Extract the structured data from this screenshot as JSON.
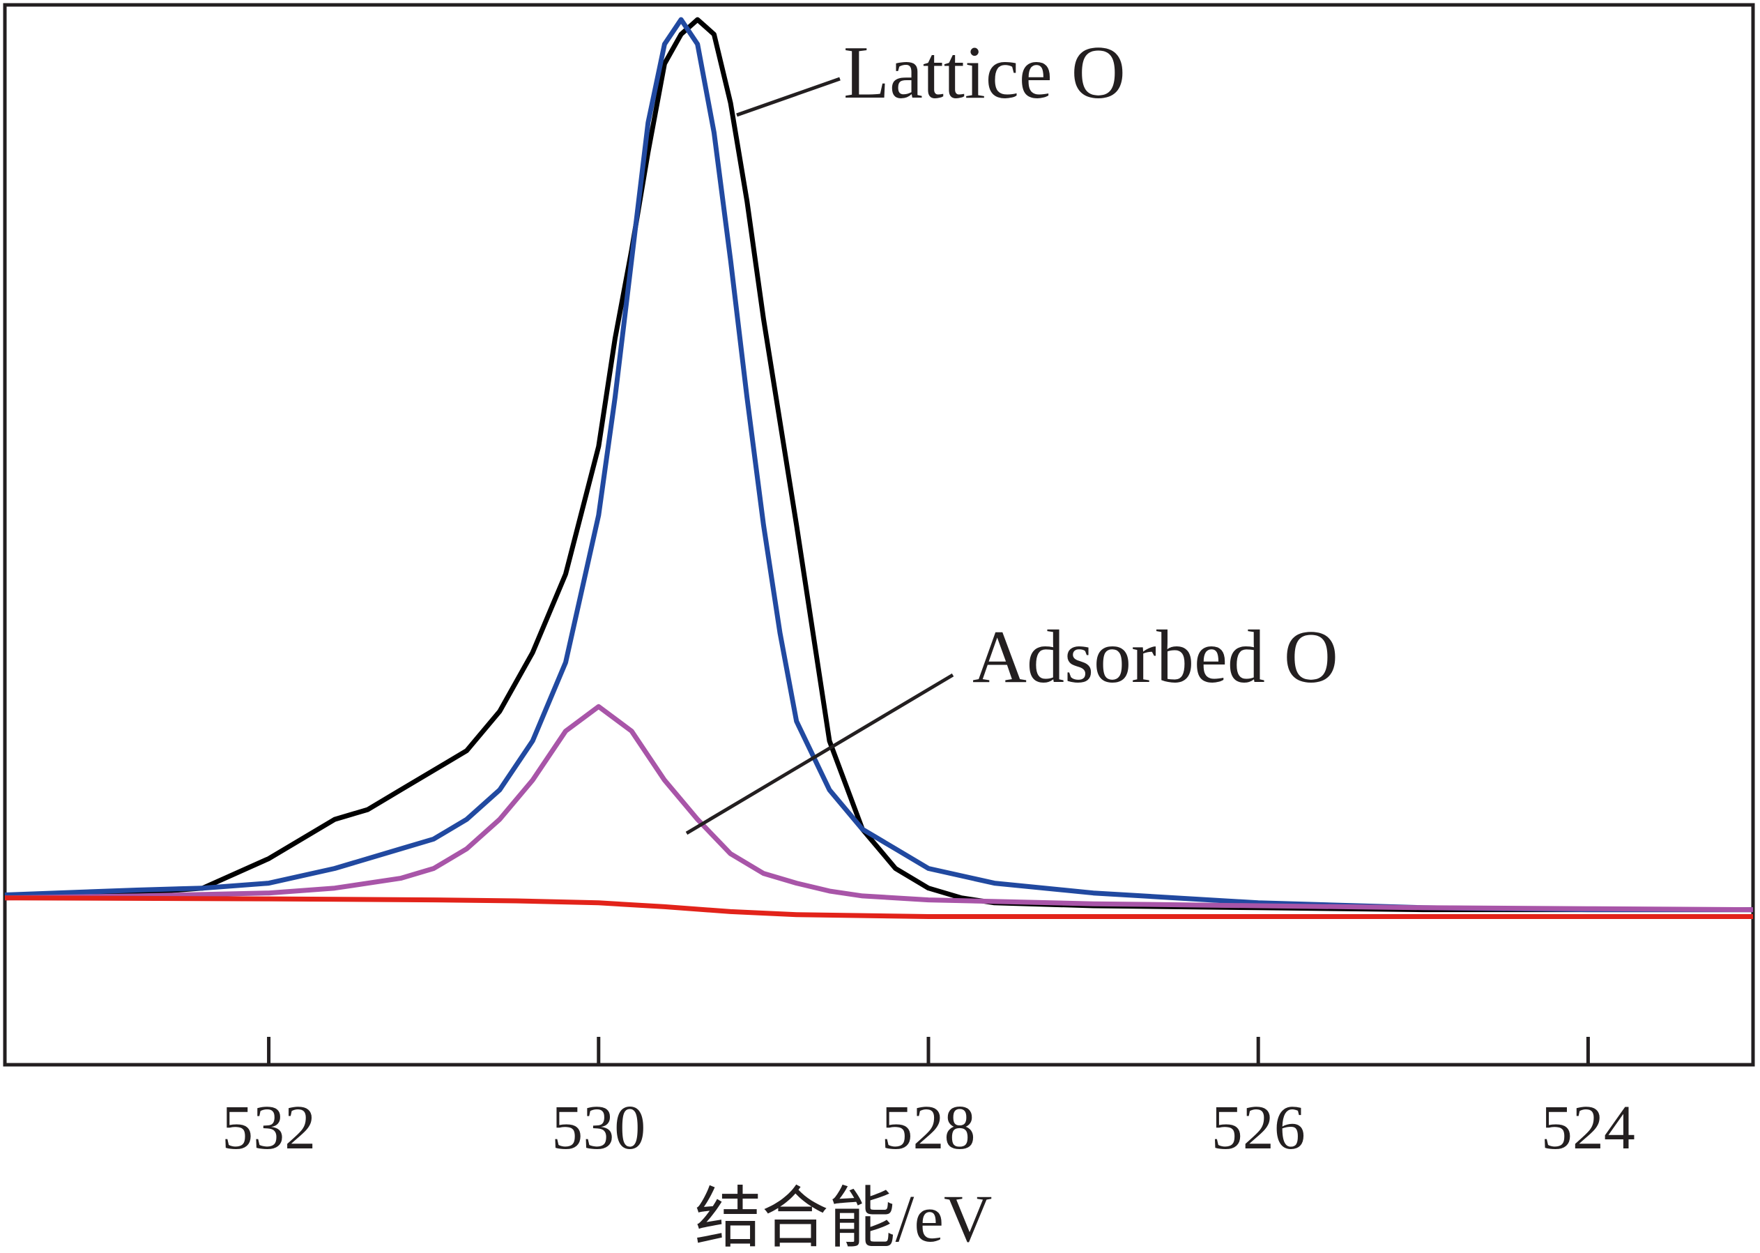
{
  "chart_data": {
    "type": "line",
    "xlabel": "结合能/eV",
    "ylabel": "",
    "xlim": [
      533.6,
      523.0
    ],
    "ylim": [
      -0.08,
      1.0
    ],
    "x_ticks": [
      532,
      530,
      528,
      526,
      524
    ],
    "x_tick_labels": [
      "532",
      "530",
      "528",
      "526",
      "524"
    ],
    "y_ticks_shown": false,
    "grid": false,
    "legend": "none",
    "series": [
      {
        "color": "#000000",
        "x": [
          533.6,
          532.8,
          532.4,
          532.0,
          531.8,
          531.6,
          531.4,
          531.2,
          531.0,
          530.8,
          530.6,
          530.4,
          530.2,
          530.0,
          529.9,
          529.8,
          529.7,
          529.6,
          529.5,
          529.4,
          529.3,
          529.2,
          529.1,
          529.0,
          528.8,
          528.6,
          528.4,
          528.2,
          528.0,
          527.8,
          527.6,
          527.0,
          526.0,
          525.0,
          524.0,
          523.0
        ],
        "y": [
          0.09,
          0.095,
          0.1,
          0.13,
          0.15,
          0.17,
          0.18,
          0.2,
          0.22,
          0.24,
          0.28,
          0.34,
          0.42,
          0.55,
          0.66,
          0.75,
          0.85,
          0.94,
          0.97,
          0.985,
          0.97,
          0.9,
          0.8,
          0.68,
          0.47,
          0.25,
          0.16,
          0.12,
          0.1,
          0.09,
          0.085,
          0.082,
          0.08,
          0.078,
          0.078,
          0.078
        ]
      },
      {
        "color": "#2149a0",
        "x": [
          533.6,
          532.8,
          532.4,
          532.0,
          531.6,
          531.2,
          531.0,
          530.8,
          530.6,
          530.4,
          530.2,
          530.0,
          529.9,
          529.8,
          529.7,
          529.6,
          529.5,
          529.4,
          529.3,
          529.2,
          529.1,
          529.0,
          528.9,
          528.8,
          528.6,
          528.4,
          528.2,
          528.0,
          527.6,
          527.0,
          526.0,
          525.0,
          524.0,
          523.0
        ],
        "y": [
          0.093,
          0.098,
          0.1,
          0.105,
          0.12,
          0.14,
          0.15,
          0.17,
          0.2,
          0.25,
          0.33,
          0.48,
          0.6,
          0.74,
          0.88,
          0.96,
          0.985,
          0.96,
          0.87,
          0.74,
          0.6,
          0.47,
          0.36,
          0.27,
          0.2,
          0.16,
          0.14,
          0.12,
          0.105,
          0.095,
          0.085,
          0.08,
          0.078,
          0.078
        ]
      },
      {
        "color": "#a855a8",
        "x": [
          533.6,
          532.8,
          532.0,
          531.6,
          531.2,
          531.0,
          530.8,
          530.6,
          530.4,
          530.2,
          530.0,
          529.8,
          529.6,
          529.4,
          529.2,
          529.0,
          528.8,
          528.6,
          528.4,
          528.0,
          527.0,
          526.0,
          525.0,
          524.0,
          523.0
        ],
        "y": [
          0.09,
          0.092,
          0.095,
          0.1,
          0.11,
          0.12,
          0.14,
          0.17,
          0.21,
          0.26,
          0.285,
          0.26,
          0.21,
          0.17,
          0.135,
          0.115,
          0.105,
          0.097,
          0.092,
          0.088,
          0.084,
          0.082,
          0.08,
          0.079,
          0.078
        ]
      },
      {
        "color": "#e2231a",
        "x": [
          533.6,
          532.0,
          531.0,
          530.5,
          530.0,
          529.6,
          529.2,
          528.8,
          528.4,
          528.0,
          527.0,
          526.0,
          525.0,
          524.0,
          523.0
        ],
        "y": [
          0.09,
          0.089,
          0.088,
          0.087,
          0.085,
          0.081,
          0.076,
          0.073,
          0.072,
          0.071,
          0.071,
          0.071,
          0.071,
          0.071,
          0.071
        ]
      }
    ],
    "annotations": [
      {
        "text": "Lattice O",
        "x": 529.3,
        "y": 0.985
      },
      {
        "text": "Adsorbed O",
        "x": 529.6,
        "y": 0.21
      }
    ]
  }
}
